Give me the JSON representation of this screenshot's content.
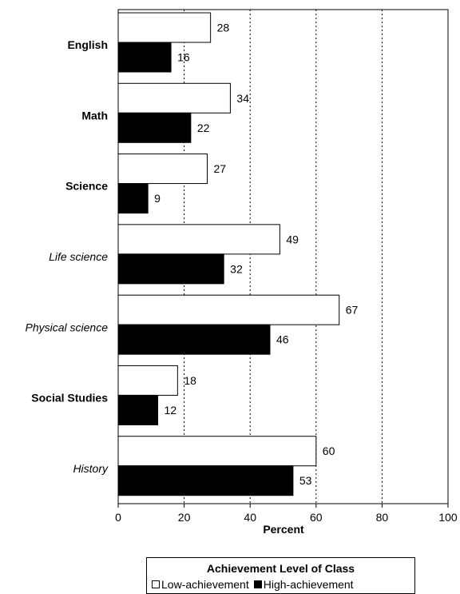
{
  "chart_data": {
    "type": "bar",
    "orientation": "horizontal",
    "categories": [
      {
        "label": "English",
        "style": "bold"
      },
      {
        "label": "Math",
        "style": "bold"
      },
      {
        "label": "Science",
        "style": "bold"
      },
      {
        "label": "Life science",
        "style": "italic"
      },
      {
        "label": "Physical science",
        "style": "italic"
      },
      {
        "label": "Social Studies",
        "style": "bold"
      },
      {
        "label": "History",
        "style": "italic"
      }
    ],
    "series": [
      {
        "name": "Low-achievement",
        "color": "#ffffff",
        "values": [
          28,
          34,
          27,
          49,
          67,
          18,
          60
        ]
      },
      {
        "name": "High-achievement",
        "color": "#000000",
        "values": [
          16,
          22,
          9,
          32,
          46,
          12,
          53
        ]
      }
    ],
    "xlabel": "Percent",
    "xlim": [
      0,
      100
    ],
    "xticks": [
      0,
      20,
      40,
      60,
      80,
      100
    ],
    "grid": "vertical dotted",
    "legend": {
      "title": "Achievement Level of Class",
      "placement": "bottom"
    }
  }
}
